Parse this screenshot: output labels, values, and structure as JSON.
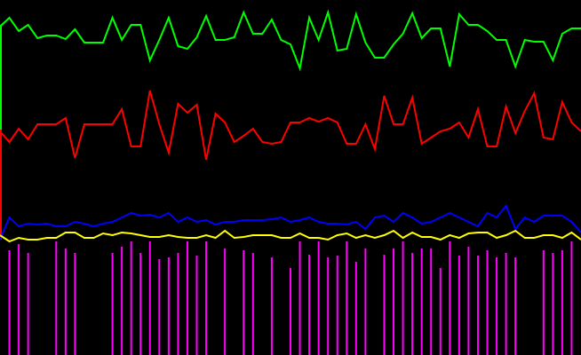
{
  "chart_data": {
    "type": "line",
    "ylim": [
      0,
      400
    ],
    "background": "#000000",
    "series": [
      {
        "color": "#00ff00",
        "values": [
          370,
          380,
          365,
          372,
          357,
          360,
          360,
          356,
          367,
          352,
          352,
          352,
          380,
          355,
          372,
          372,
          332,
          355,
          380,
          348,
          345,
          358,
          382,
          355,
          355,
          358,
          386,
          362,
          362,
          378,
          355,
          350,
          323,
          380,
          355,
          386,
          343,
          345,
          384,
          352,
          335,
          335,
          350,
          362,
          385,
          357,
          368,
          368,
          325,
          384,
          372,
          372,
          365,
          355,
          355,
          325,
          355,
          353,
          353,
          332,
          362,
          368,
          368
        ]
      },
      {
        "color": "#ff0000",
        "values": [
          252,
          240,
          255,
          243,
          260,
          260,
          260,
          267,
          222,
          260,
          260,
          260,
          260,
          277,
          235,
          235,
          298,
          260,
          228,
          283,
          273,
          282,
          220,
          272,
          262,
          240,
          247,
          255,
          240,
          238,
          240,
          262,
          262,
          267,
          263,
          267,
          262,
          238,
          238,
          260,
          232,
          292,
          260,
          260,
          290,
          238,
          245,
          252,
          255,
          262,
          245,
          277,
          235,
          235,
          280,
          250,
          275,
          295,
          245,
          243,
          285,
          262,
          252
        ]
      },
      {
        "color": "#0000ff",
        "values": [
          130,
          155,
          145,
          148,
          147,
          148,
          145,
          145,
          150,
          148,
          145,
          148,
          150,
          155,
          160,
          157,
          158,
          155,
          160,
          150,
          155,
          150,
          152,
          147,
          150,
          150,
          152,
          152,
          152,
          153,
          155,
          150,
          152,
          155,
          150,
          148,
          148,
          147,
          150,
          142,
          155,
          157,
          150,
          160,
          155,
          148,
          150,
          155,
          160,
          155,
          150,
          145,
          160,
          155,
          168,
          142,
          155,
          150,
          157,
          157,
          157,
          150,
          138
        ]
      },
      {
        "color": "#ffff00",
        "values": [
          135,
          128,
          132,
          130,
          130,
          132,
          132,
          138,
          138,
          132,
          132,
          137,
          135,
          138,
          137,
          135,
          133,
          133,
          135,
          133,
          132,
          132,
          135,
          132,
          140,
          132,
          133,
          135,
          135,
          135,
          132,
          132,
          137,
          132,
          132,
          130,
          135,
          137,
          132,
          135,
          132,
          135,
          140,
          132,
          138,
          133,
          133,
          130,
          135,
          132,
          137,
          138,
          138,
          132,
          135,
          140,
          132,
          132,
          135,
          135,
          132,
          138,
          130
        ]
      },
      {
        "color": "#ff00ff",
        "type": "bar",
        "values": [
          null,
          118,
          125,
          115,
          null,
          null,
          128,
          120,
          115,
          null,
          null,
          null,
          115,
          122,
          128,
          115,
          128,
          108,
          110,
          115,
          128,
          112,
          128,
          null,
          120,
          null,
          118,
          115,
          null,
          110,
          null,
          98,
          128,
          113,
          128,
          110,
          112,
          128,
          105,
          120,
          null,
          113,
          120,
          128,
          115,
          120,
          120,
          98,
          128,
          112,
          122,
          112,
          118,
          110,
          115,
          110,
          null,
          null,
          118,
          115,
          118,
          128,
          null
        ]
      }
    ]
  }
}
